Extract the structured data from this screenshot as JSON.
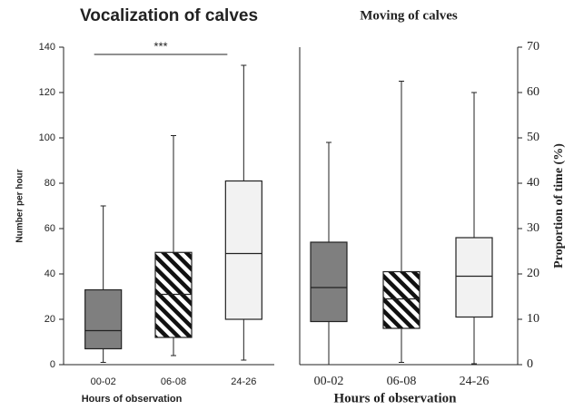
{
  "chart_data": [
    {
      "type": "box",
      "title": "Vocalization of calves",
      "y_label": "Number per hour",
      "x_label": "Hours of observation",
      "categories": [
        "00-02",
        "06-08",
        "24-26"
      ],
      "whisker_low": [
        1,
        4,
        2
      ],
      "q1": [
        7,
        12,
        20
      ],
      "median": [
        15,
        31,
        49
      ],
      "q3": [
        33,
        49.5,
        81
      ],
      "whisker_high": [
        70,
        101,
        132
      ],
      "fills": [
        "#7f7f7f",
        "hatched",
        "#f2f2f2"
      ],
      "ylim": [
        0,
        140
      ],
      "yticks": [
        0,
        20,
        40,
        60,
        80,
        100,
        120,
        140
      ],
      "y_axis_side": "left",
      "annotation": "***"
    },
    {
      "type": "box",
      "title": "Moving of calves",
      "y_label": "Proportion of time (%)",
      "x_label": "Hours of observation",
      "categories": [
        "00-02",
        "06-08",
        "24-26"
      ],
      "whisker_low": [
        0,
        0.5,
        0.2
      ],
      "q1": [
        9.5,
        8,
        10.5
      ],
      "median": [
        17,
        14.5,
        19.5
      ],
      "q3": [
        27,
        20.5,
        28
      ],
      "whisker_high": [
        49,
        62.5,
        60
      ],
      "fills": [
        "#7f7f7f",
        "hatched",
        "#f2f2f2"
      ],
      "ylim": [
        0,
        70
      ],
      "yticks": [
        0,
        10,
        20,
        30,
        40,
        50,
        60,
        70
      ],
      "y_axis_side": "right"
    }
  ]
}
